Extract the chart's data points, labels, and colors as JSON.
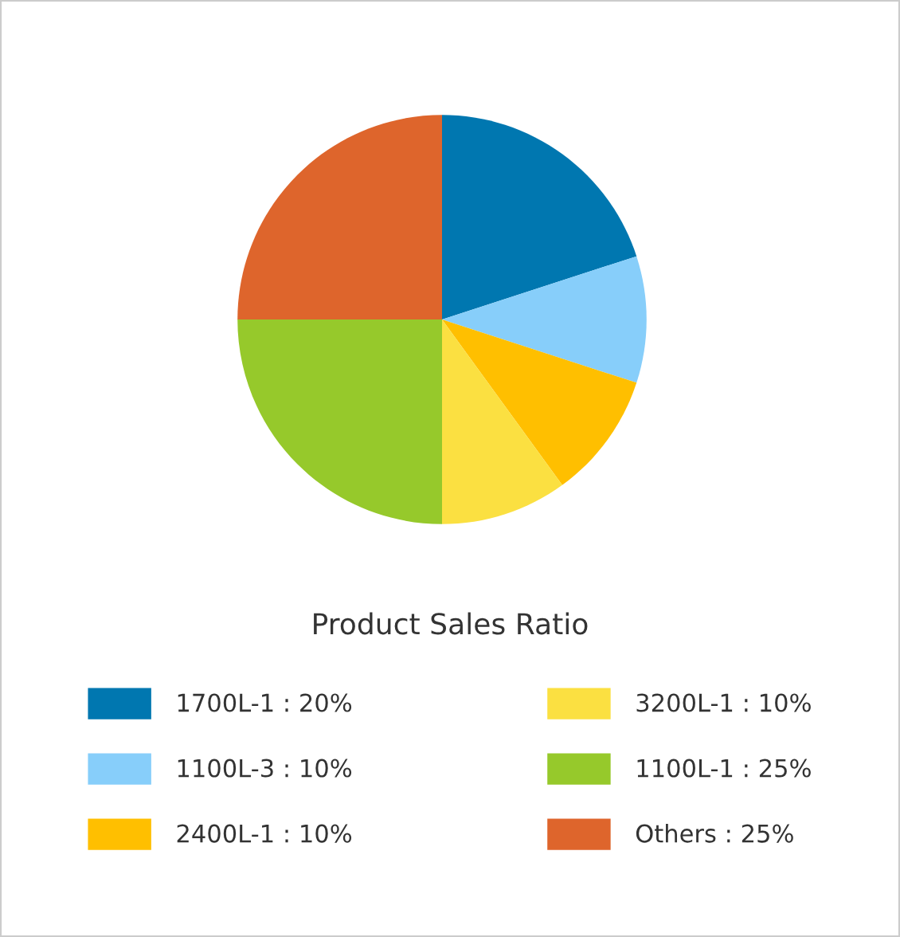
{
  "chart_data": {
    "type": "pie",
    "title": "Product Sales Ratio",
    "categories": [
      "1700L-1 : 20%",
      "1100L-3 : 10%",
      "2400L-1 : 10%",
      "3200L-1 : 10%",
      "1100L-1 : 25%",
      "Others : 25%"
    ],
    "values": [
      20,
      10,
      10,
      10,
      25,
      25
    ],
    "colors": [
      "#0077b0",
      "#87cefa",
      "#ffbf00",
      "#fbe041",
      "#96c92b",
      "#de652c"
    ],
    "legend": "bottom"
  }
}
